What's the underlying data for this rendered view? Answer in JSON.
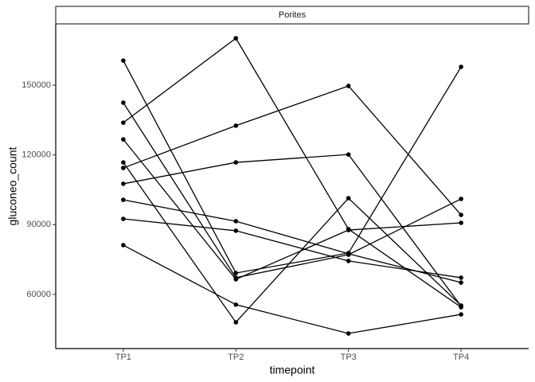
{
  "chart_data": {
    "type": "line",
    "facet": "Porites",
    "x_label": "timepoint",
    "y_label": "gluconeo_count",
    "categories": [
      "TP1",
      "TP2",
      "TP3",
      "TP4"
    ],
    "series": [
      {
        "color": "#000000",
        "values": [
          133900,
          170200,
          88100,
          54500
        ]
      },
      {
        "color": "#000000",
        "values": [
          160600,
          69200,
          77800,
          157900
        ]
      },
      {
        "color": "#000000",
        "values": [
          142500,
          67200,
          77100,
          101100
        ]
      },
      {
        "color": "#000000",
        "values": [
          126700,
          66500,
          87700,
          90800
        ]
      },
      {
        "color": "#000000",
        "values": [
          116800,
          48000,
          101400,
          55200
        ]
      },
      {
        "color": "#000000",
        "values": [
          114400,
          132600,
          149700,
          94200
        ]
      },
      {
        "color": "#000000",
        "values": [
          107600,
          116800,
          120200,
          55000
        ]
      },
      {
        "color": "#000000",
        "values": [
          100700,
          91500,
          77500,
          65100
        ]
      },
      {
        "color": "#000000",
        "values": [
          92500,
          87400,
          74400,
          67200
        ]
      },
      {
        "color": "#000000",
        "values": [
          81200,
          55600,
          43200,
          51400
        ]
      }
    ],
    "ylim": [
      36700,
      176400
    ],
    "yticks": [
      60000,
      90000,
      120000,
      150000
    ]
  }
}
